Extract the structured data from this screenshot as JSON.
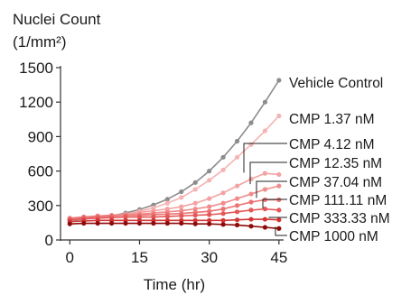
{
  "chart_data": {
    "type": "line",
    "ylabel_line1": "Nuclei Count",
    "ylabel_line2": "(1/mm²)",
    "xlabel": "Time (hr)",
    "xlim": [
      -2,
      46
    ],
    "ylim": [
      0,
      1500
    ],
    "xticks": [
      0,
      15,
      30,
      45
    ],
    "yticks": [
      0,
      300,
      600,
      900,
      1200,
      1500
    ],
    "grid": false,
    "x": [
      0,
      3,
      6,
      9,
      12,
      15,
      18,
      21,
      24,
      27,
      30,
      33,
      36,
      39,
      42,
      45
    ],
    "series": [
      {
        "name": "Vehicle Control",
        "color": "#8c8c8c",
        "values": [
          170,
          180,
          195,
          210,
          235,
          265,
          305,
          355,
          420,
          500,
          600,
          720,
          860,
          1020,
          1200,
          1390
        ]
      },
      {
        "name": "CMP 1.37 nM",
        "color": "#f6b3b3",
        "values": [
          175,
          185,
          195,
          205,
          225,
          250,
          280,
          320,
          370,
          440,
          520,
          610,
          720,
          830,
          950,
          1080
        ]
      },
      {
        "name": "CMP 4.12 nM",
        "color": "#f4a3a3",
        "values": [
          180,
          195,
          205,
          215,
          225,
          240,
          255,
          270,
          290,
          320,
          360,
          410,
          470,
          530,
          580,
          570
        ]
      },
      {
        "name": "CMP 12.35 nM",
        "color": "#f08c8c",
        "values": [
          185,
          200,
          210,
          215,
          220,
          225,
          235,
          245,
          255,
          270,
          290,
          320,
          360,
          400,
          440,
          470
        ]
      },
      {
        "name": "CMP 37.04 nM",
        "color": "#eb7373",
        "values": [
          190,
          200,
          205,
          210,
          215,
          215,
          220,
          225,
          230,
          240,
          250,
          270,
          300,
          330,
          350,
          350
        ]
      },
      {
        "name": "CMP 111.11 nM",
        "color": "#e55656",
        "values": [
          175,
          185,
          190,
          195,
          200,
          200,
          200,
          205,
          210,
          215,
          220,
          230,
          245,
          260,
          270,
          260
        ]
      },
      {
        "name": "CMP 333.33 nM",
        "color": "#d33535",
        "values": [
          160,
          165,
          170,
          170,
          170,
          170,
          170,
          170,
          170,
          170,
          170,
          170,
          175,
          180,
          180,
          175
        ]
      },
      {
        "name": "CMP 1000 nM",
        "color": "#8e0a0a",
        "values": [
          140,
          145,
          145,
          145,
          145,
          145,
          145,
          145,
          145,
          140,
          140,
          135,
          130,
          120,
          110,
          100
        ]
      }
    ]
  }
}
